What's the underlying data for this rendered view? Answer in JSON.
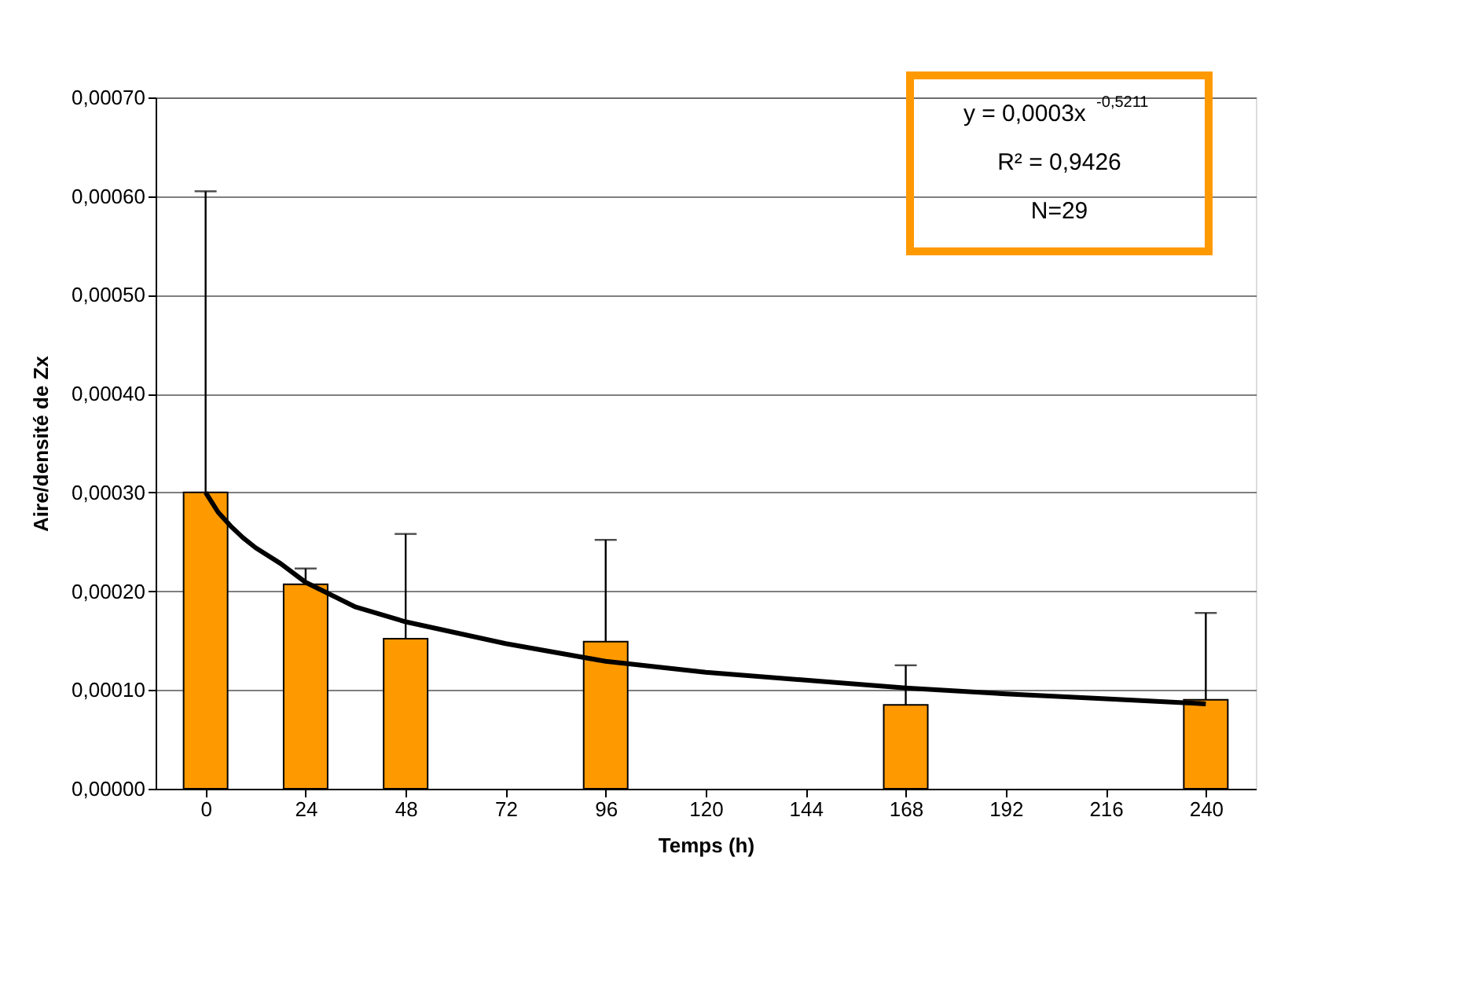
{
  "chart_data": {
    "type": "bar",
    "xlabel": "Temps (h)",
    "ylabel": "Aire/densité de Zx",
    "xlim": [
      -12,
      252
    ],
    "xticks": [
      0,
      24,
      48,
      72,
      96,
      120,
      144,
      168,
      192,
      216,
      240
    ],
    "ylim": [
      0,
      0.0007
    ],
    "yticks": [
      {
        "value": 0,
        "label": "0,00000"
      },
      {
        "value": 0.0001,
        "label": "0,00010"
      },
      {
        "value": 0.0002,
        "label": "0,00020"
      },
      {
        "value": 0.0003,
        "label": "0,00030"
      },
      {
        "value": 0.0004,
        "label": "0,00040"
      },
      {
        "value": 0.0005,
        "label": "0,00050"
      },
      {
        "value": 0.0006,
        "label": "0,00060"
      },
      {
        "value": 0.0007,
        "label": "0,00070"
      }
    ],
    "grid": "y",
    "legend": false,
    "series": [
      {
        "color": "#ff9900",
        "x": [
          0,
          24,
          48,
          96,
          168,
          240
        ],
        "values": [
          0.0003,
          0.000207,
          0.000152,
          0.000149,
          8.5e-05,
          9e-05
        ],
        "errors": [
          [
            0.0003,
            0.000605
          ],
          [
            0.000207,
            0.000223
          ],
          [
            0.000152,
            0.000258
          ],
          [
            0.000149,
            0.000252
          ],
          [
            8.5e-05,
            0.000125
          ],
          [
            9e-05,
            0.000178
          ]
        ]
      },
      {
        "type": "line",
        "color": "#000000",
        "x": [
          0,
          3,
          6,
          9,
          12,
          18,
          24,
          36,
          48,
          72,
          96,
          120,
          144,
          168,
          192,
          216,
          240
        ],
        "values": [
          0.0003,
          0.00028,
          0.000266,
          0.000254,
          0.000244,
          0.000228,
          0.000209,
          0.000184,
          0.000169,
          0.000147,
          0.000129,
          0.000118,
          0.00011,
          0.000102,
          9.6e-05,
          9.1e-05,
          8.6e-05
        ]
      }
    ],
    "annotations": [
      "y = 0,0003x$^{-0,5211}$",
      "R² = 0,9426",
      "N=29"
    ]
  }
}
